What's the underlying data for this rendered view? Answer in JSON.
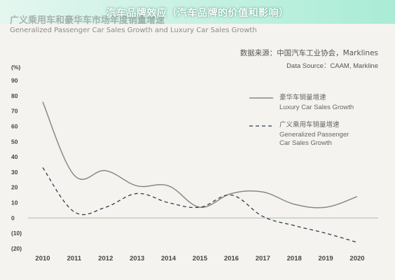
{
  "overlay_title": "汽车品牌效应（汽车品牌的价值和影响）",
  "chart_data": {
    "type": "line",
    "title": "广义乘用车和豪华车市场年度销量增速",
    "subtitle": "Generalized Passenger Car Sales Growth and Luxury Car Sales Growth",
    "source_cn": "数据来源：中国汽车工业协会，Marklines",
    "source_en": "Data Source：CAAM, Markline",
    "ylabel": "(%)",
    "ylim": [
      -20,
      90
    ],
    "yticks": [
      "90",
      "80",
      "70",
      "60",
      "50",
      "40",
      "30",
      "20",
      "10",
      "0",
      "(10)",
      "(20)"
    ],
    "ytick_values": [
      90,
      80,
      70,
      60,
      50,
      40,
      30,
      20,
      10,
      0,
      -10,
      -20
    ],
    "x": [
      "2010",
      "2011",
      "2012",
      "2013",
      "2014",
      "2015",
      "2016",
      "2017",
      "2018",
      "2019",
      "2020"
    ],
    "series": [
      {
        "name": "豪华车销量增速",
        "name_en": "Luxury Car Sales Growth",
        "style": "solid",
        "color": "#8a8a80",
        "values": [
          76,
          28,
          31,
          21,
          21,
          7,
          16,
          17,
          9,
          7,
          14
        ]
      },
      {
        "name": "广义乘用车销量增速",
        "name_en_line1": "Generalized Passenger",
        "name_en_line2": "Car Sales Growth",
        "style": "dashed",
        "color": "#2f3d52",
        "values": [
          33,
          4,
          7,
          16,
          10,
          7,
          15,
          1,
          -5,
          -10,
          -16
        ]
      }
    ],
    "grid": false,
    "legend_position": "right"
  }
}
